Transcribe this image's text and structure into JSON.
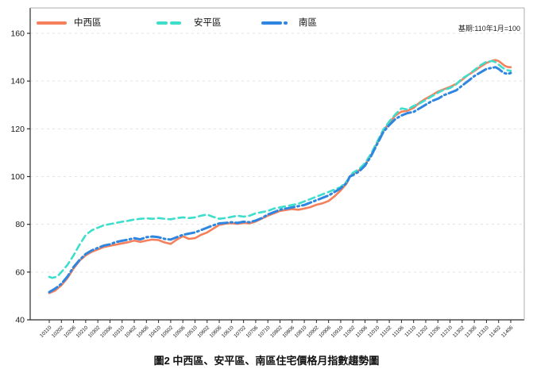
{
  "note": {
    "base_period": "基期:110年1月=100"
  },
  "caption": "圖2 中西區、安平區、南區住宅價格月指數趨勢圖",
  "chart_data": {
    "type": "line",
    "title": "圖2 中西區、安平區、南區住宅價格月指數趨勢圖",
    "annotation": "基期:110年1月=100",
    "xlabel": "",
    "ylabel": "",
    "ylim": [
      40,
      160
    ],
    "yticks": [
      40,
      60,
      80,
      100,
      120,
      140,
      160
    ],
    "grid": "horizontal-dashed",
    "legend_position": "top-left-horizontal",
    "x_tick_labels": [
      "10110",
      "10202",
      "10206",
      "10210",
      "10302",
      "10306",
      "10310",
      "10402",
      "10406",
      "10410",
      "10502",
      "10506",
      "10510",
      "10602",
      "10606",
      "10610",
      "10702",
      "10706",
      "10710",
      "10802",
      "10806",
      "10810",
      "10902",
      "10906",
      "10910",
      "11002",
      "11006",
      "11010",
      "11102",
      "11106",
      "11110",
      "11202",
      "11206",
      "11210",
      "11302",
      "11306",
      "11310",
      "11402",
      "11406"
    ],
    "x_months_per_tick": 4,
    "x_total_month_index": 152,
    "base_period_month": "11001",
    "base_period_value": 100,
    "series": [
      {
        "name": "中西區",
        "color": "#F5805C",
        "dash": "",
        "width": 2.6,
        "points": [
          [
            0,
            51.2
          ],
          [
            2,
            52.3
          ],
          [
            4,
            54.5
          ],
          [
            6,
            57.5
          ],
          [
            8,
            61.5
          ],
          [
            10,
            64.8
          ],
          [
            12,
            67
          ],
          [
            14,
            68.5
          ],
          [
            16,
            69.5
          ],
          [
            18,
            70.5
          ],
          [
            20,
            71
          ],
          [
            22,
            71.5
          ],
          [
            24,
            72
          ],
          [
            26,
            72.5
          ],
          [
            28,
            73.2
          ],
          [
            30,
            72.6
          ],
          [
            32,
            73.2
          ],
          [
            34,
            73.6
          ],
          [
            36,
            73.4
          ],
          [
            38,
            72.4
          ],
          [
            40,
            71.8
          ],
          [
            42,
            73.6
          ],
          [
            44,
            75
          ],
          [
            46,
            73.9
          ],
          [
            48,
            74.2
          ],
          [
            50,
            75.6
          ],
          [
            52,
            76.6
          ],
          [
            54,
            78.2
          ],
          [
            56,
            79.8
          ],
          [
            58,
            80.3
          ],
          [
            60,
            80.5
          ],
          [
            62,
            80.2
          ],
          [
            64,
            80.6
          ],
          [
            66,
            80.4
          ],
          [
            68,
            81.2
          ],
          [
            70,
            82.4
          ],
          [
            72,
            83.6
          ],
          [
            74,
            84.6
          ],
          [
            76,
            85.6
          ],
          [
            78,
            86
          ],
          [
            80,
            86.4
          ],
          [
            82,
            86.1
          ],
          [
            84,
            86.6
          ],
          [
            86,
            87.2
          ],
          [
            88,
            88.2
          ],
          [
            90,
            88.8
          ],
          [
            92,
            89.8
          ],
          [
            94,
            91.8
          ],
          [
            96,
            94.2
          ],
          [
            98,
            97.2
          ],
          [
            99,
            100
          ],
          [
            100,
            101.2
          ],
          [
            102,
            102.6
          ],
          [
            104,
            105
          ],
          [
            106,
            109
          ],
          [
            108,
            114
          ],
          [
            110,
            119
          ],
          [
            112,
            122.6
          ],
          [
            114,
            125.6
          ],
          [
            116,
            127.2
          ],
          [
            118,
            127.6
          ],
          [
            120,
            128.8
          ],
          [
            122,
            131
          ],
          [
            124,
            132.6
          ],
          [
            126,
            134
          ],
          [
            128,
            135.6
          ],
          [
            130,
            136.6
          ],
          [
            132,
            137.6
          ],
          [
            134,
            138.8
          ],
          [
            136,
            140.6
          ],
          [
            138,
            142.6
          ],
          [
            140,
            144.2
          ],
          [
            142,
            146
          ],
          [
            144,
            147.6
          ],
          [
            146,
            148.6
          ],
          [
            147,
            148.8
          ],
          [
            148,
            148.4
          ],
          [
            149,
            147.4
          ],
          [
            150,
            146.4
          ],
          [
            151,
            145.9
          ],
          [
            152,
            145.8
          ]
        ]
      },
      {
        "name": "安平區",
        "color": "#3DDECB",
        "dash": "8 5",
        "width": 2.6,
        "points": [
          [
            0,
            58
          ],
          [
            1,
            57.6
          ],
          [
            2,
            57.9
          ],
          [
            3,
            58.6
          ],
          [
            4,
            60
          ],
          [
            6,
            63
          ],
          [
            8,
            67
          ],
          [
            10,
            71.5
          ],
          [
            12,
            75.5
          ],
          [
            14,
            77.5
          ],
          [
            16,
            78.6
          ],
          [
            18,
            79.6
          ],
          [
            20,
            80.1
          ],
          [
            22,
            80.6
          ],
          [
            24,
            81.1
          ],
          [
            26,
            81.5
          ],
          [
            28,
            82
          ],
          [
            30,
            82.3
          ],
          [
            32,
            82.5
          ],
          [
            34,
            82.3
          ],
          [
            36,
            82.6
          ],
          [
            38,
            82.3
          ],
          [
            40,
            82.1
          ],
          [
            42,
            82.6
          ],
          [
            44,
            82.9
          ],
          [
            46,
            82.6
          ],
          [
            48,
            82.9
          ],
          [
            50,
            83.6
          ],
          [
            52,
            84.1
          ],
          [
            54,
            83.1
          ],
          [
            56,
            82.3
          ],
          [
            58,
            82.6
          ],
          [
            60,
            83.1
          ],
          [
            62,
            83.6
          ],
          [
            64,
            83.2
          ],
          [
            66,
            83.6
          ],
          [
            68,
            84.6
          ],
          [
            70,
            85.1
          ],
          [
            72,
            85.6
          ],
          [
            74,
            86.6
          ],
          [
            76,
            87.1
          ],
          [
            78,
            87.6
          ],
          [
            80,
            88.1
          ],
          [
            82,
            88.6
          ],
          [
            84,
            89.6
          ],
          [
            86,
            90.6
          ],
          [
            88,
            91.6
          ],
          [
            90,
            92.6
          ],
          [
            92,
            93.6
          ],
          [
            94,
            94.6
          ],
          [
            96,
            95.6
          ],
          [
            98,
            98
          ],
          [
            99,
            100
          ],
          [
            100,
            101.6
          ],
          [
            102,
            103.1
          ],
          [
            104,
            105.6
          ],
          [
            106,
            109.6
          ],
          [
            108,
            114.6
          ],
          [
            110,
            119.6
          ],
          [
            112,
            123.1
          ],
          [
            114,
            126.1
          ],
          [
            116,
            128.6
          ],
          [
            118,
            128.1
          ],
          [
            120,
            129.6
          ],
          [
            122,
            130.6
          ],
          [
            124,
            132.1
          ],
          [
            126,
            133.6
          ],
          [
            128,
            135.1
          ],
          [
            130,
            136.4
          ],
          [
            132,
            137.1
          ],
          [
            134,
            138.6
          ],
          [
            136,
            141.1
          ],
          [
            138,
            142.6
          ],
          [
            140,
            144.6
          ],
          [
            142,
            146.6
          ],
          [
            144,
            148.1
          ],
          [
            146,
            148.4
          ],
          [
            147,
            147.9
          ],
          [
            148,
            146.9
          ],
          [
            149,
            145.9
          ],
          [
            150,
            145
          ],
          [
            151,
            144.5
          ],
          [
            152,
            144.3
          ]
        ]
      },
      {
        "name": "南區",
        "color": "#2E86E0",
        "dash": "12 4 2 4",
        "width": 3,
        "points": [
          [
            0,
            51.6
          ],
          [
            2,
            53.1
          ],
          [
            4,
            55.1
          ],
          [
            6,
            58.1
          ],
          [
            8,
            62.1
          ],
          [
            10,
            65.1
          ],
          [
            12,
            67.6
          ],
          [
            14,
            69.1
          ],
          [
            16,
            70.1
          ],
          [
            18,
            71.1
          ],
          [
            20,
            71.6
          ],
          [
            22,
            72.6
          ],
          [
            24,
            73.1
          ],
          [
            26,
            73.6
          ],
          [
            28,
            74.2
          ],
          [
            30,
            73.7
          ],
          [
            32,
            74.6
          ],
          [
            34,
            74.9
          ],
          [
            36,
            74.6
          ],
          [
            38,
            73.9
          ],
          [
            40,
            73.6
          ],
          [
            42,
            74.6
          ],
          [
            44,
            75.6
          ],
          [
            46,
            76.1
          ],
          [
            48,
            76.6
          ],
          [
            50,
            77.6
          ],
          [
            52,
            78.6
          ],
          [
            54,
            79.6
          ],
          [
            56,
            80.4
          ],
          [
            58,
            80.6
          ],
          [
            60,
            80.9
          ],
          [
            62,
            80.6
          ],
          [
            64,
            81.1
          ],
          [
            66,
            80.9
          ],
          [
            68,
            81.6
          ],
          [
            70,
            82.6
          ],
          [
            72,
            84.1
          ],
          [
            74,
            85.1
          ],
          [
            76,
            86.1
          ],
          [
            78,
            86.6
          ],
          [
            80,
            87.1
          ],
          [
            82,
            87.6
          ],
          [
            84,
            88.1
          ],
          [
            86,
            89.1
          ],
          [
            88,
            90.1
          ],
          [
            90,
            91.1
          ],
          [
            92,
            92.1
          ],
          [
            94,
            93.6
          ],
          [
            96,
            95.1
          ],
          [
            98,
            97.4
          ],
          [
            99,
            100
          ],
          [
            100,
            100.6
          ],
          [
            102,
            102.1
          ],
          [
            104,
            104.6
          ],
          [
            106,
            108.6
          ],
          [
            108,
            113.6
          ],
          [
            110,
            118.6
          ],
          [
            112,
            121.6
          ],
          [
            114,
            124.1
          ],
          [
            116,
            125.6
          ],
          [
            118,
            126.6
          ],
          [
            120,
            127.1
          ],
          [
            122,
            128.6
          ],
          [
            124,
            130.1
          ],
          [
            126,
            131.6
          ],
          [
            128,
            132.6
          ],
          [
            130,
            134.1
          ],
          [
            132,
            135.1
          ],
          [
            134,
            136.1
          ],
          [
            136,
            138.1
          ],
          [
            138,
            140.1
          ],
          [
            140,
            142.1
          ],
          [
            142,
            143.6
          ],
          [
            144,
            145.1
          ],
          [
            146,
            145.6
          ],
          [
            147,
            145.8
          ],
          [
            148,
            145.1
          ],
          [
            149,
            144.1
          ],
          [
            150,
            143.3
          ],
          [
            151,
            143
          ],
          [
            152,
            143.4
          ]
        ]
      }
    ],
    "style": {
      "grid_color": "#E3E3E3",
      "axis_color": "#2B2B2B",
      "minor_spine_color": "#ADADAD",
      "tick_label_color": "#1A1A1A"
    }
  }
}
